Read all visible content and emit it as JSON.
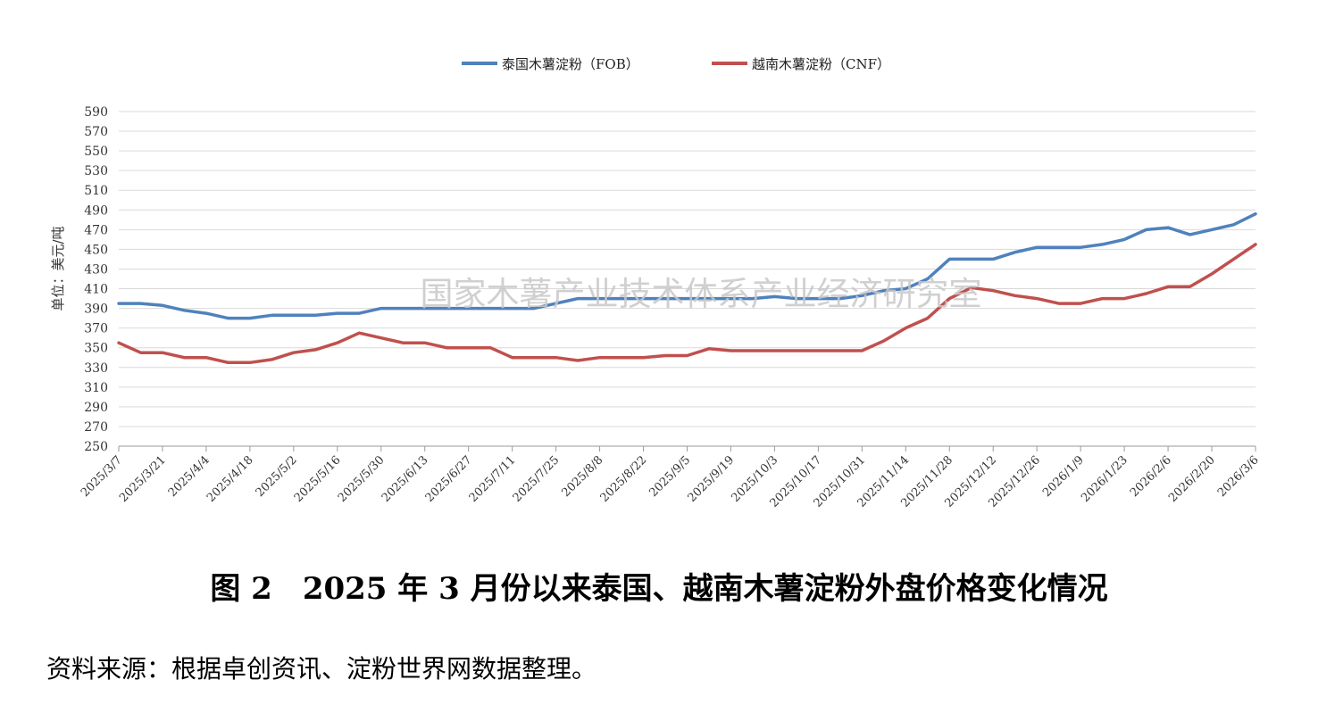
{
  "chart_data": {
    "type": "line",
    "ylabel": "单位：美元/吨",
    "ylim": [
      250,
      590
    ],
    "yticks": [
      250,
      270,
      290,
      310,
      330,
      350,
      370,
      390,
      410,
      430,
      450,
      470,
      490,
      510,
      530,
      550,
      570,
      590
    ],
    "grid": true,
    "legend_position": "top-center",
    "xticks": [
      "2025/3/7",
      "2025/3/21",
      "2025/4/4",
      "2025/4/18",
      "2025/5/2",
      "2025/5/16",
      "2025/5/30",
      "2025/6/13",
      "2025/6/27",
      "2025/7/11",
      "2025/7/25",
      "2025/8/8",
      "2025/8/22",
      "2025/9/5",
      "2025/9/19",
      "2025/10/3",
      "2025/10/17",
      "2025/10/31",
      "2025/11/14",
      "2025/11/28",
      "2025/12/12",
      "2025/12/26",
      "2026/1/9",
      "2026/1/23",
      "2026/2/6",
      "2026/2/20",
      "2026/3/6"
    ],
    "x": [
      "2025/3/7",
      "2025/3/14",
      "2025/3/21",
      "2025/3/28",
      "2025/4/4",
      "2025/4/11",
      "2025/4/18",
      "2025/4/25",
      "2025/5/2",
      "2025/5/9",
      "2025/5/16",
      "2025/5/23",
      "2025/5/30",
      "2025/6/6",
      "2025/6/13",
      "2025/6/20",
      "2025/6/27",
      "2025/7/4",
      "2025/7/11",
      "2025/7/18",
      "2025/7/25",
      "2025/8/1",
      "2025/8/8",
      "2025/8/15",
      "2025/8/22",
      "2025/8/29",
      "2025/9/5",
      "2025/9/12",
      "2025/9/19",
      "2025/9/26",
      "2025/10/3",
      "2025/10/10",
      "2025/10/17",
      "2025/10/24",
      "2025/10/31",
      "2025/11/7",
      "2025/11/14",
      "2025/11/21",
      "2025/11/28",
      "2025/12/5",
      "2025/12/12",
      "2025/12/19",
      "2025/12/26",
      "2026/1/2",
      "2026/1/9",
      "2026/1/16",
      "2026/1/23",
      "2026/1/30",
      "2026/2/6",
      "2026/2/13",
      "2026/2/20",
      "2026/2/27",
      "2026/3/6"
    ],
    "series": [
      {
        "name": "泰国木薯淀粉（FOB）",
        "color": "#4f81bd",
        "values": [
          395,
          395,
          393,
          388,
          385,
          380,
          380,
          383,
          383,
          383,
          385,
          385,
          390,
          390,
          390,
          390,
          390,
          390,
          390,
          390,
          395,
          400,
          400,
          400,
          400,
          400,
          400,
          400,
          400,
          400,
          402,
          400,
          400,
          400,
          403,
          408,
          410,
          420,
          440,
          440,
          440,
          447,
          452,
          452,
          452,
          455,
          460,
          470,
          472,
          465,
          470,
          475,
          486
        ]
      },
      {
        "name": "越南木薯淀粉（CNF）",
        "color": "#c0504d",
        "values": [
          355,
          345,
          345,
          340,
          340,
          335,
          335,
          338,
          345,
          348,
          355,
          365,
          360,
          355,
          355,
          350,
          350,
          350,
          340,
          340,
          340,
          337,
          340,
          340,
          340,
          342,
          342,
          349,
          347,
          347,
          347,
          347,
          347,
          347,
          347,
          357,
          370,
          380,
          400,
          411,
          408,
          403,
          400,
          395,
          395,
          400,
          400,
          405,
          412,
          412,
          425,
          440,
          455
        ]
      }
    ]
  },
  "watermark": "国家木薯产业技术体系产业经济研究室",
  "caption": "图 2　2025 年 3 月份以来泰国、越南木薯淀粉外盘价格变化情况",
  "source": "资料来源：根据卓创资讯、淀粉世界网数据整理。"
}
